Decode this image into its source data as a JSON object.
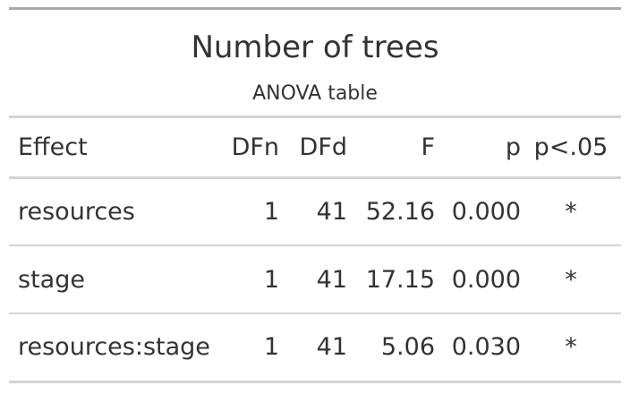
{
  "table": {
    "title": "Number of trees",
    "subtitle": "ANOVA table",
    "columns": [
      "Effect",
      "DFn",
      "DFd",
      "F",
      "p",
      "p<.05"
    ],
    "rows": [
      [
        "resources",
        "1",
        "41",
        "52.16",
        "0.000",
        "*"
      ],
      [
        "stage",
        "1",
        "41",
        "17.15",
        "0.000",
        "*"
      ],
      [
        "resources:stage",
        "1",
        "41",
        "5.06",
        "0.030",
        "*"
      ]
    ],
    "colors": {
      "text": "#333333",
      "top_rule": "#a8a8a8",
      "rule": "#d3d3d3",
      "background": "#ffffff"
    }
  }
}
